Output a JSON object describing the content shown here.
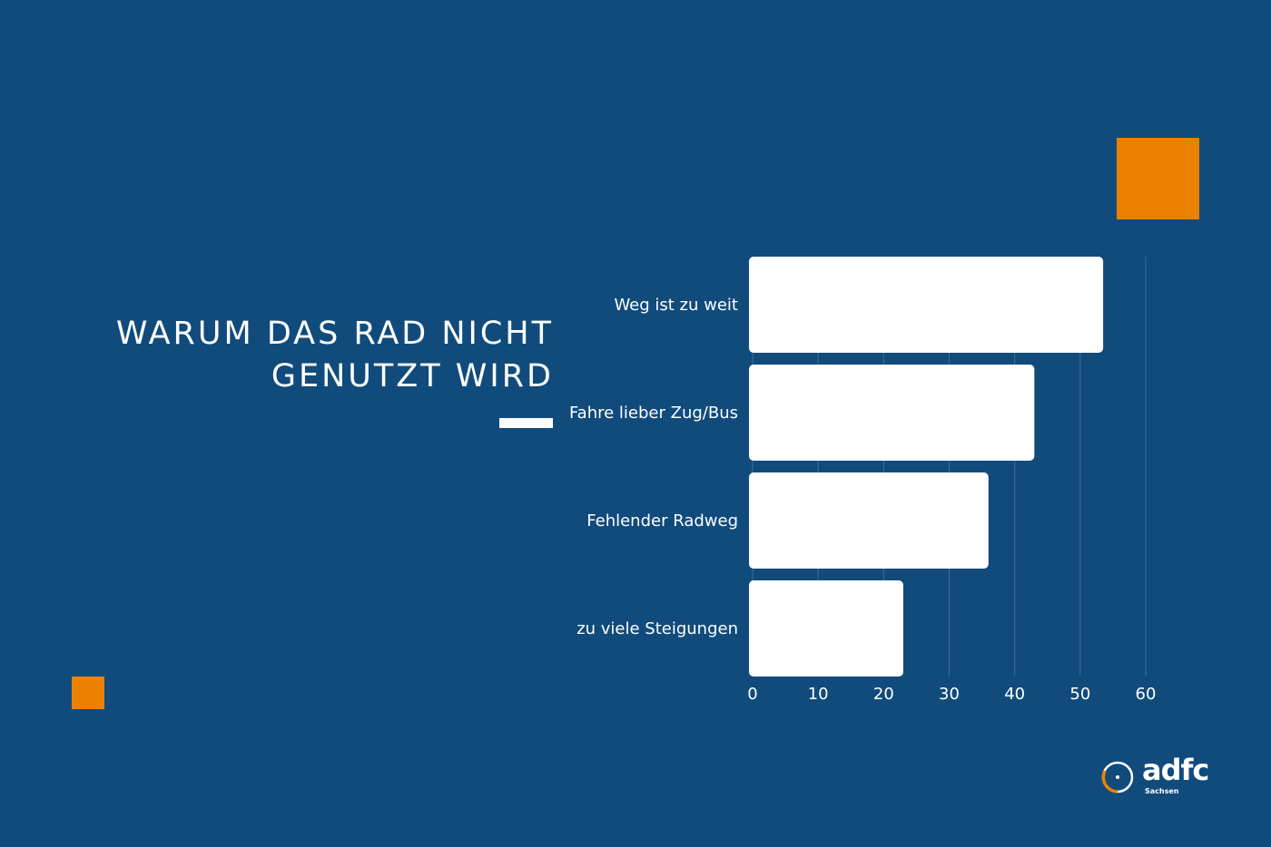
{
  "colors": {
    "background": "#104b7c",
    "bar": "#ffffff",
    "accent": "#ec8100",
    "grid": "#3f6f9a"
  },
  "title": {
    "line1": "WARUM DAS RAD NICHT",
    "line2": "GENUTZT WIRD"
  },
  "logo": {
    "word": "adfc",
    "sub": "Sachsen"
  },
  "chart_data": {
    "type": "bar",
    "orientation": "horizontal",
    "categories": [
      "Weg ist zu weit",
      "Fahre lieber Zug/Bus",
      "Fehlender Radweg",
      "zu viele Steigungen"
    ],
    "values": [
      53.5,
      43,
      36,
      23
    ],
    "xlim": [
      0,
      60
    ],
    "xticks": [
      0,
      10,
      20,
      30,
      40,
      50,
      60
    ],
    "grid": "vertical",
    "title": "WARUM DAS RAD NICHT GENUTZT WIRD",
    "xlabel": "",
    "ylabel": ""
  }
}
